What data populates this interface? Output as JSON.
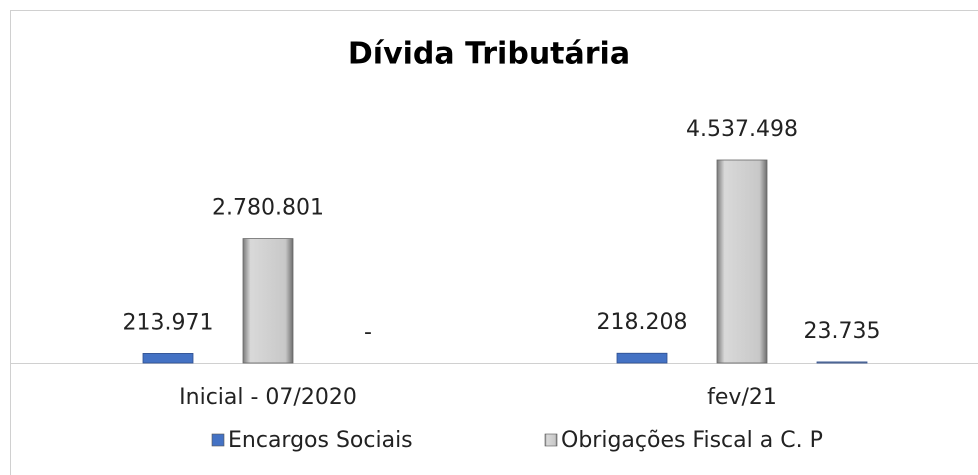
{
  "chart_data": {
    "type": "bar",
    "title": "Dívida Tributária",
    "categories": [
      "Inicial - 07/2020",
      "fev/21"
    ],
    "series": [
      {
        "name": "Encargos Sociais",
        "color": "#4472c4",
        "values": [
          213971,
          218208
        ],
        "value_labels": [
          "213.971",
          "218.208"
        ]
      },
      {
        "name": "Obrigações Fiscal a C. P",
        "color": "#bfbfbf",
        "values": [
          2780801,
          4537498
        ],
        "value_labels": [
          "2.780.801",
          "4.537.498"
        ]
      },
      {
        "color": "#a5a5a5",
        "values": [
          0,
          23735
        ],
        "value_labels": [
          "-",
          "23.735"
        ]
      }
    ]
  }
}
